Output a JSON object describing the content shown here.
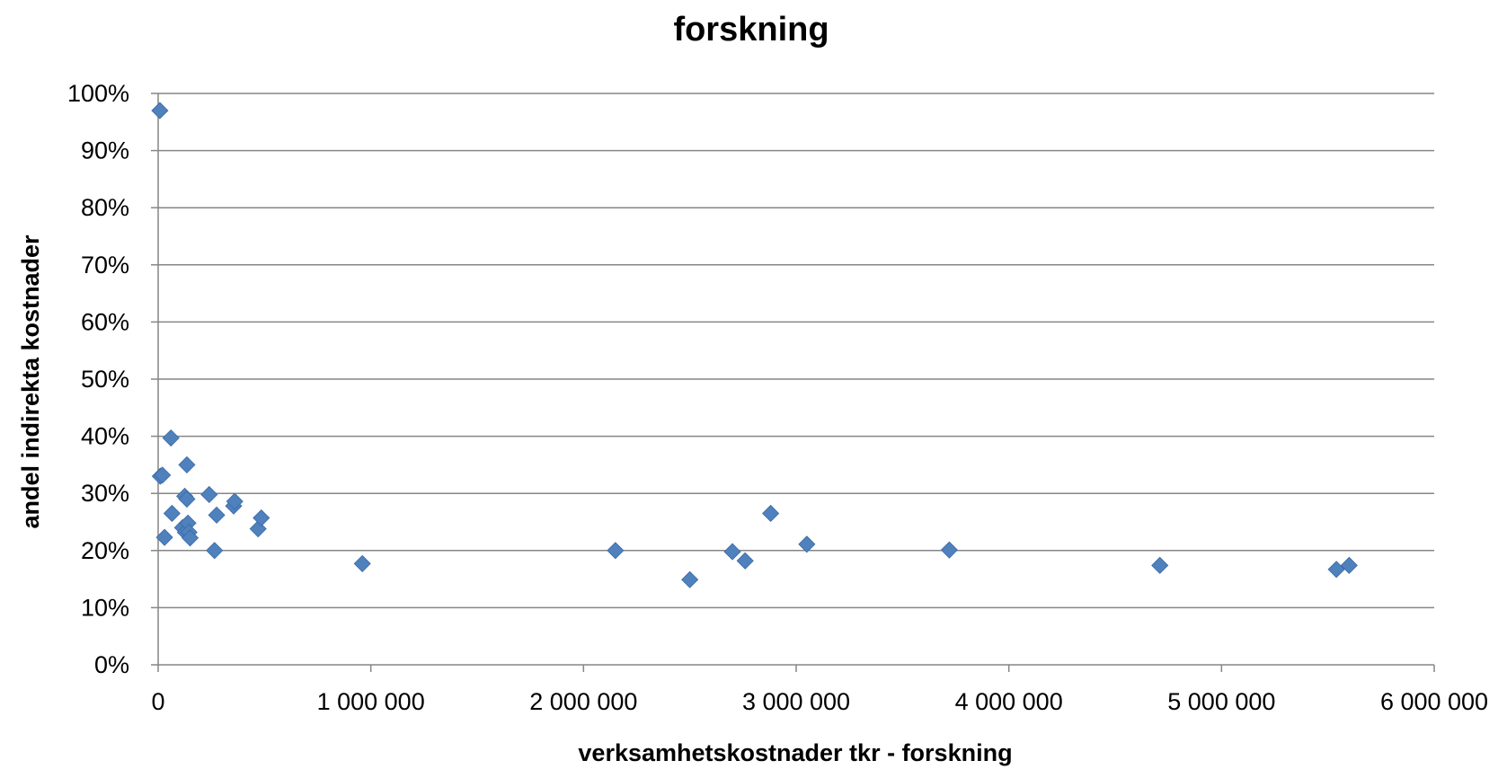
{
  "chart_data": {
    "type": "scatter",
    "title": "forskning",
    "xlabel": "verksamhetskostnader tkr - forskning",
    "ylabel": "andel indirekta kostnader",
    "xlim": [
      0,
      6000000
    ],
    "ylim": [
      0,
      1
    ],
    "x_ticks": [
      0,
      1000000,
      2000000,
      3000000,
      4000000,
      5000000,
      6000000
    ],
    "x_tick_labels": [
      "0",
      "1 000 000",
      "2 000 000",
      "3 000 000",
      "4 000 000",
      "5 000 000",
      "6 000 000"
    ],
    "y_ticks": [
      0,
      0.1,
      0.2,
      0.3,
      0.4,
      0.5,
      0.6,
      0.7,
      0.8,
      0.9,
      1.0
    ],
    "y_tick_labels": [
      "0%",
      "10%",
      "20%",
      "30%",
      "40%",
      "50%",
      "60%",
      "70%",
      "80%",
      "90%",
      "100%"
    ],
    "grid": "horizontal",
    "legend": "none",
    "marker": "diamond",
    "marker_color": "#4F81BD",
    "gridline_color": "#868686",
    "axis_color": "#868686",
    "series": [
      {
        "points": [
          {
            "x": 8000,
            "y": 0.97
          },
          {
            "x": 10000,
            "y": 0.33
          },
          {
            "x": 20000,
            "y": 0.332
          },
          {
            "x": 30000,
            "y": 0.223
          },
          {
            "x": 60000,
            "y": 0.397
          },
          {
            "x": 65000,
            "y": 0.265
          },
          {
            "x": 115000,
            "y": 0.24
          },
          {
            "x": 125000,
            "y": 0.295
          },
          {
            "x": 128000,
            "y": 0.232
          },
          {
            "x": 135000,
            "y": 0.29
          },
          {
            "x": 135000,
            "y": 0.35
          },
          {
            "x": 140000,
            "y": 0.248
          },
          {
            "x": 145000,
            "y": 0.232
          },
          {
            "x": 150000,
            "y": 0.222
          },
          {
            "x": 240000,
            "y": 0.298
          },
          {
            "x": 265000,
            "y": 0.2
          },
          {
            "x": 275000,
            "y": 0.262
          },
          {
            "x": 355000,
            "y": 0.278
          },
          {
            "x": 360000,
            "y": 0.286
          },
          {
            "x": 470000,
            "y": 0.238
          },
          {
            "x": 485000,
            "y": 0.257
          },
          {
            "x": 960000,
            "y": 0.177
          },
          {
            "x": 2150000,
            "y": 0.2
          },
          {
            "x": 2500000,
            "y": 0.149
          },
          {
            "x": 2700000,
            "y": 0.198
          },
          {
            "x": 2760000,
            "y": 0.182
          },
          {
            "x": 2880000,
            "y": 0.265
          },
          {
            "x": 3050000,
            "y": 0.211
          },
          {
            "x": 3720000,
            "y": 0.201
          },
          {
            "x": 4710000,
            "y": 0.174
          },
          {
            "x": 5540000,
            "y": 0.167
          },
          {
            "x": 5600000,
            "y": 0.174
          }
        ]
      }
    ]
  }
}
